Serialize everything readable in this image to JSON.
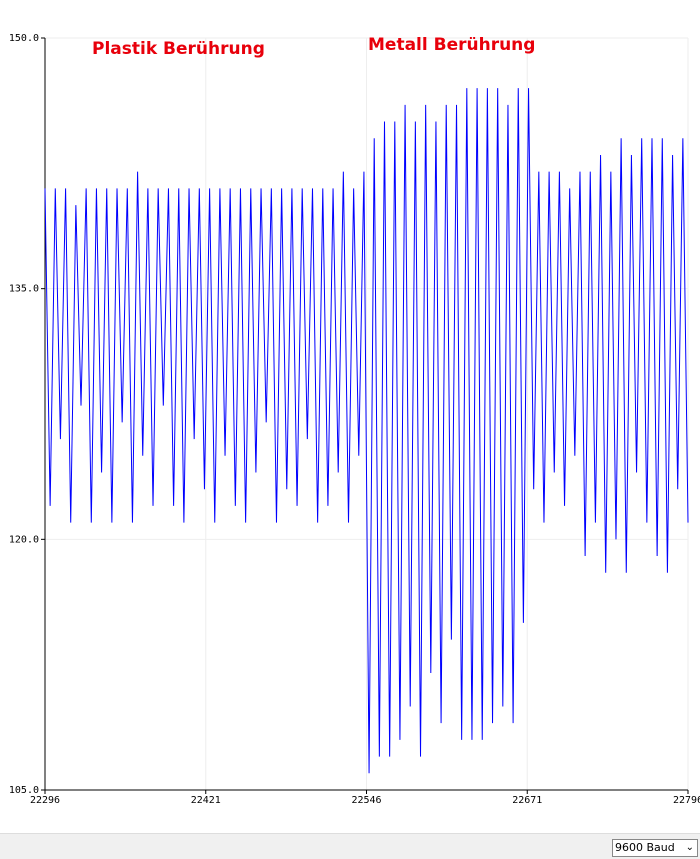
{
  "chart_data": {
    "type": "line",
    "annotations": [
      "Plastik Berührung",
      "Metall Berührung"
    ],
    "x": [
      22296,
      22300,
      22304,
      22308,
      22312,
      22316,
      22320,
      22324,
      22328,
      22332,
      22336,
      22340,
      22344,
      22348,
      22352,
      22356,
      22360,
      22364,
      22368,
      22372,
      22376,
      22380,
      22384,
      22388,
      22392,
      22396,
      22400,
      22404,
      22408,
      22412,
      22416,
      22420,
      22424,
      22428,
      22432,
      22436,
      22440,
      22444,
      22448,
      22452,
      22456,
      22460,
      22464,
      22468,
      22472,
      22476,
      22480,
      22484,
      22488,
      22492,
      22496,
      22500,
      22504,
      22508,
      22512,
      22516,
      22520,
      22524,
      22528,
      22532,
      22536,
      22540,
      22544,
      22548,
      22552,
      22556,
      22560,
      22564,
      22568,
      22572,
      22576,
      22580,
      22584,
      22588,
      22592,
      22596,
      22600,
      22604,
      22608,
      22612,
      22616,
      22620,
      22624,
      22628,
      22632,
      22636,
      22640,
      22644,
      22648,
      22652,
      22656,
      22660,
      22664,
      22668,
      22672,
      22676,
      22680,
      22684,
      22688,
      22692,
      22696,
      22700,
      22704,
      22708,
      22712,
      22716,
      22720,
      22724,
      22728,
      22732,
      22736,
      22740,
      22744,
      22748,
      22752,
      22756,
      22760,
      22764,
      22768,
      22772,
      22776,
      22780,
      22784,
      22788,
      22792,
      22796
    ],
    "values": [
      141,
      122,
      141,
      126,
      141,
      121,
      140,
      128,
      141,
      121,
      141,
      124,
      141,
      121,
      141,
      127,
      141,
      121,
      142,
      125,
      141,
      122,
      141,
      128,
      141,
      122,
      141,
      121,
      141,
      126,
      141,
      123,
      141,
      121,
      141,
      125,
      141,
      122,
      141,
      121,
      141,
      124,
      141,
      127,
      141,
      121,
      141,
      123,
      141,
      122,
      141,
      126,
      141,
      121,
      141,
      122,
      141,
      124,
      142,
      121,
      141,
      125,
      142,
      106,
      144,
      107,
      145,
      107,
      145,
      108,
      146,
      110,
      145,
      107,
      146,
      112,
      145,
      109,
      146,
      114,
      146,
      108,
      147,
      108,
      147,
      108,
      147,
      109,
      147,
      110,
      146,
      109,
      147,
      115,
      147,
      123,
      142,
      121,
      142,
      124,
      142,
      122,
      141,
      125,
      142,
      119,
      142,
      121,
      143,
      118,
      142,
      120,
      144,
      118,
      143,
      124,
      144,
      121,
      144,
      119,
      144,
      118,
      143,
      123,
      144,
      121
    ],
    "color": "#0000ff",
    "xlim": [
      22296,
      22796
    ],
    "xticks": [
      22296,
      22421,
      22546,
      22671,
      22796
    ],
    "ylim": [
      105,
      150
    ],
    "yticks": [
      {
        "value": 105,
        "label": "105.0"
      },
      {
        "value": 120,
        "label": "120.0"
      },
      {
        "value": 135,
        "label": "135.0"
      },
      {
        "value": 150,
        "label": "150.0"
      }
    ],
    "grid": true
  },
  "footer": {
    "baud": "9600 Baud"
  }
}
